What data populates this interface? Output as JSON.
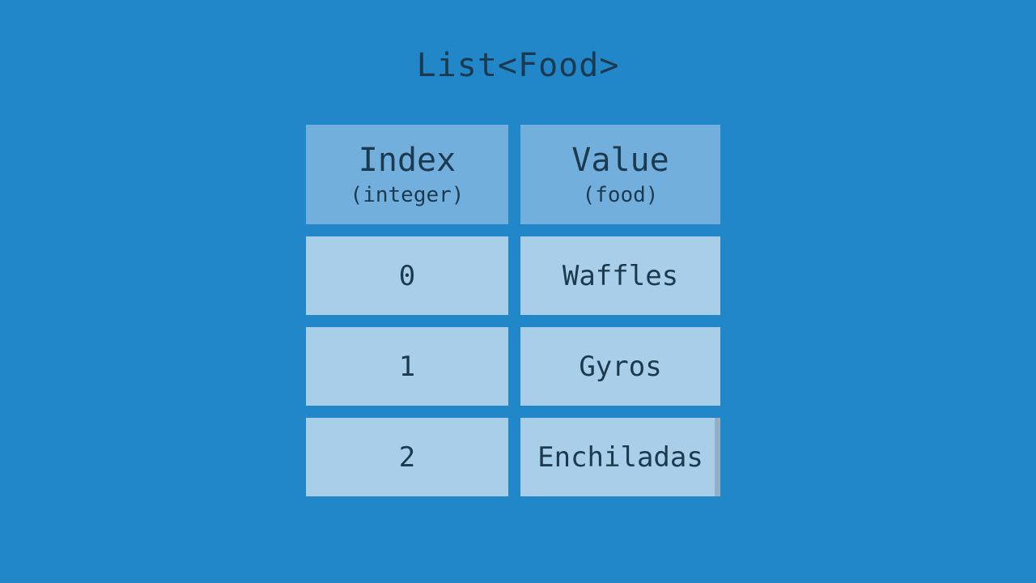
{
  "title": "List<Food>",
  "colors": {
    "background": "#2187C9",
    "header_cell": "#73AFDC",
    "data_cell": "#A9CEE9",
    "text": "#1B3A50"
  },
  "table": {
    "columns": [
      {
        "label": "Index",
        "type_label": "(integer)"
      },
      {
        "label": "Value",
        "type_label": "(food)"
      }
    ],
    "rows": [
      {
        "index": "0",
        "value": "Waffles"
      },
      {
        "index": "1",
        "value": "Gyros"
      },
      {
        "index": "2",
        "value": "Enchiladas"
      }
    ]
  }
}
